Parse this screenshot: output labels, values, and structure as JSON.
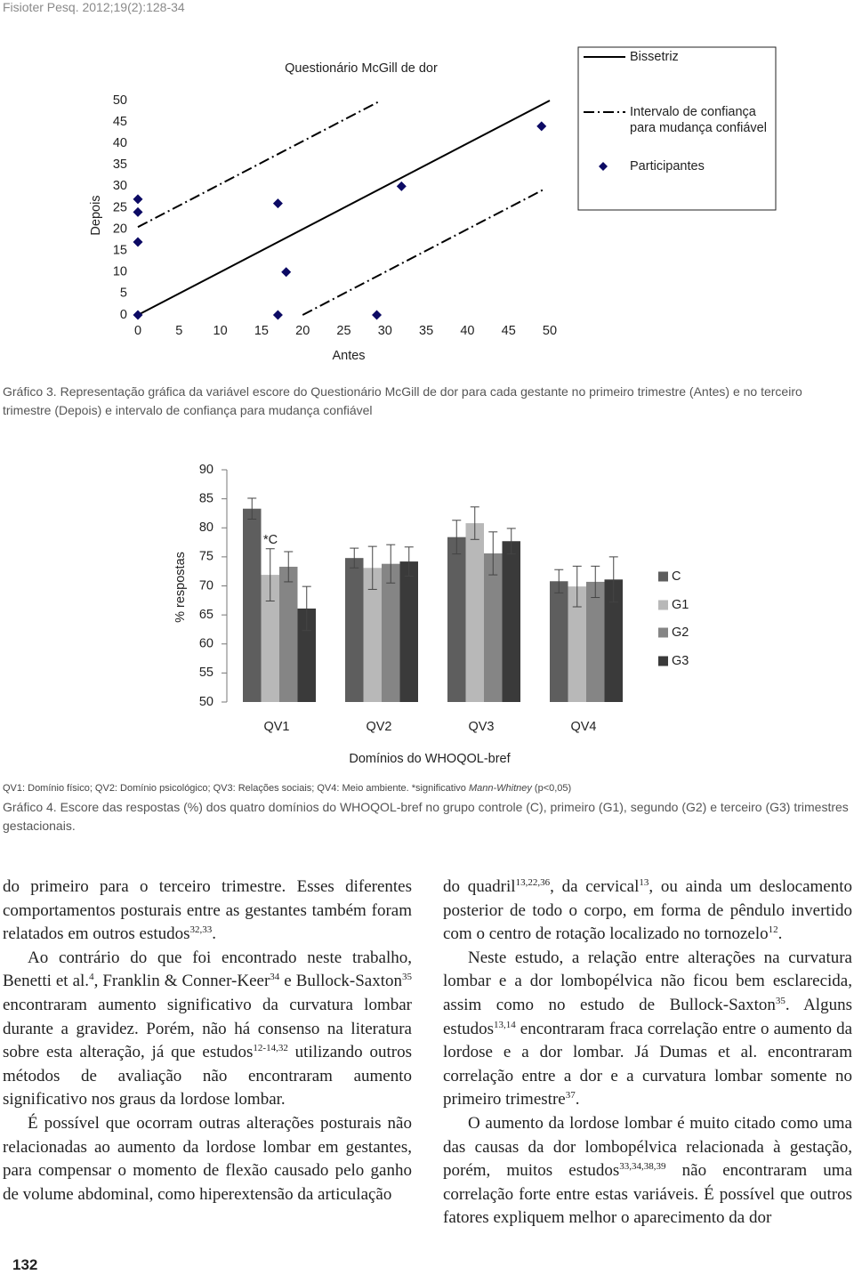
{
  "header": "Fisioter Pesq. 2012;19(2):128-34",
  "chart_data": [
    {
      "type": "scatter",
      "title": "Questionário McGill de dor",
      "x_label": "Antes",
      "y_label": "Depois",
      "xlim": [
        0,
        50
      ],
      "ylim": [
        0,
        50
      ],
      "xticks": [
        0,
        5,
        10,
        15,
        20,
        25,
        30,
        35,
        40,
        45,
        50
      ],
      "yticks": [
        0,
        5,
        10,
        15,
        20,
        25,
        30,
        35,
        40,
        45,
        50
      ],
      "legend": "upper right",
      "series": [
        {
          "name": "Bissetriz",
          "mode": "line",
          "dash": "solid",
          "color": "#000000",
          "segments": [
            {
              "x": [
                0,
                50
              ],
              "values": [
                0,
                50
              ]
            }
          ]
        },
        {
          "name": "Intervalo de confiança para mudança confiável",
          "mode": "line",
          "dash": "dashdot",
          "color": "#000000",
          "segments": [
            {
              "x": [
                0,
                29.5
              ],
              "values": [
                20.5,
                50
              ]
            },
            {
              "x": [
                20,
                49.5
              ],
              "values": [
                0,
                29.5
              ]
            }
          ]
        },
        {
          "name": "Participantes",
          "mode": "markers",
          "marker": "diamond",
          "color": "#0c0a64",
          "x": [
            0,
            0,
            0,
            0,
            17,
            18,
            17,
            29,
            32,
            49
          ],
          "values": [
            27,
            24,
            17,
            0,
            26,
            10,
            0,
            0,
            30,
            44
          ]
        }
      ],
      "caption": "Gráfico 3. Representação gráfica da variável escore do Questionário McGill de dor para cada gestante no primeiro trimestre (Antes) e no terceiro trimestre (Depois) e intervalo de confiança para mudança confiável"
    },
    {
      "type": "bar",
      "x_label": "Domínios do WHOQOL-bref",
      "y_label": "% respostas",
      "categories": [
        "QV1",
        "QV2",
        "QV3",
        "QV4"
      ],
      "ylim": [
        50,
        90
      ],
      "yticks": [
        50,
        55,
        60,
        65,
        70,
        75,
        80,
        85,
        90
      ],
      "legend": "right",
      "series": [
        {
          "name": "C",
          "color": "#5e5e5e",
          "values": [
            83.3,
            74.8,
            78.4,
            70.8
          ],
          "errors": [
            1.8,
            1.7,
            2.9,
            2.0
          ]
        },
        {
          "name": "G1",
          "color": "#b8b8b8",
          "values": [
            71.9,
            73.1,
            80.8,
            69.9
          ],
          "errors": [
            4.5,
            3.7,
            2.8,
            3.5
          ]
        },
        {
          "name": "G2",
          "color": "#858585",
          "values": [
            73.3,
            73.8,
            75.6,
            70.7
          ],
          "errors": [
            2.6,
            3.3,
            3.7,
            2.7
          ]
        },
        {
          "name": "G3",
          "color": "#3a3a3a",
          "values": [
            66.1,
            74.2,
            77.7,
            71.1
          ],
          "errors": [
            3.8,
            2.5,
            2.2,
            3.9
          ]
        }
      ],
      "annotation": "*C",
      "note": [
        "QV1: Domínio físico; QV2: Domínio psicológico; QV3: Relações sociais; QV4: Meio ambiente. *significativo ",
        "Mann-Whitney",
        " (p<0,05)"
      ],
      "caption": "Gráfico 4. Escore das respostas (%) dos quatro domínios do WHOQOL-bref no grupo controle (C), primeiro (G1), segundo (G2) e terceiro (G3) trimestres gestacionais."
    }
  ],
  "body": {
    "left": [
      [
        "do primeiro para o terceiro trimestre. Esses diferentes comportamentos posturais entre as gestantes também foram relatados em outros estudos",
        "32,33",
        "."
      ],
      [
        "Ao contrário do que foi encontrado neste trabalho, Benetti et al.",
        "4",
        ", Franklin & Conner-Keer",
        "34",
        " e Bullock-Saxton",
        "35",
        " encontraram aumento significativo da curvatura lombar durante a gravidez. Porém, não há consenso na literatura sobre esta alteração, já que estudos",
        "12-14,32",
        " utilizando outros métodos de avaliação não encontraram aumento significativo nos graus da lordose lombar."
      ],
      [
        "É possível que ocorram outras alterações posturais não relacionadas ao aumento da lordose lombar em gestantes, para compensar o momento de flexão causado pelo ganho de volume abdominal, como hiperextensão da articulação"
      ]
    ],
    "right": [
      [
        "do quadril",
        "13,22,36",
        ", da cervical",
        "13",
        ", ou ainda um deslocamento posterior de todo o corpo, em forma de pêndulo invertido com o centro de rotação localizado no tornozelo",
        "12",
        "."
      ],
      [
        "Neste estudo, a relação entre alterações na curvatura lombar e a dor lombopélvica não ficou bem esclarecida, assim como no estudo de Bullock-Saxton",
        "35",
        ". Alguns estudos",
        "13,14",
        " encontraram fraca correlação entre o aumento da lordose e a dor lombar. Já Dumas et al. encontraram correlação entre a dor e a curvatura lombar somente no primeiro trimestre",
        "37",
        "."
      ],
      [
        "O aumento da lordose lombar é muito citado como uma das causas da dor lombopélvica relacionada à gestação, porém, muitos estudos",
        "33,34,38,39",
        " não encontraram uma correlação forte entre estas variáveis. É possível que outros fatores expliquem melhor o aparecimento da dor"
      ]
    ]
  },
  "page_number": "132"
}
